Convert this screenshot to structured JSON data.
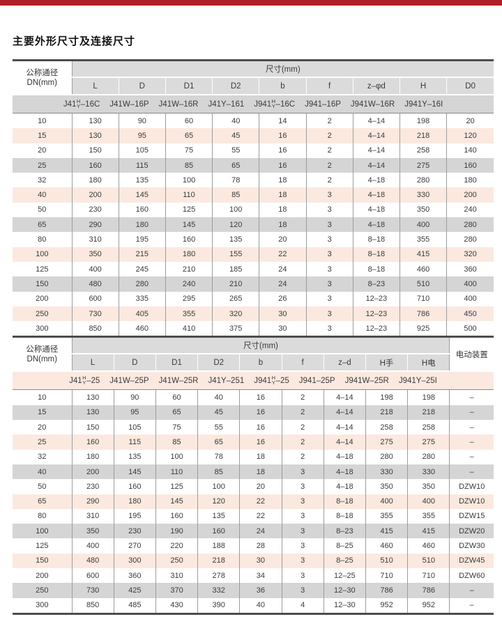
{
  "page": {
    "title": "主要外形尺寸及连接尺寸",
    "accent_color": "#b01e28"
  },
  "colors": {
    "row_pink": "#fbe9e0",
    "row_gray": "#d5d5d5",
    "header_gray": "#dbdbdb",
    "thick_border": "#4d4d4d",
    "column_divider": "#9c9c9c"
  },
  "table1": {
    "dn_header_line1": "公称通径",
    "dn_header_line2": "DN(mm)",
    "size_header": "尺寸(mm)",
    "columns": [
      "L",
      "D",
      "D1",
      "D2",
      "b",
      "f",
      "z–φd",
      "H",
      "D0"
    ],
    "model_band_shade": "gray",
    "models": [
      {
        "pre": "J41",
        "stack_top": "H",
        "stack_bottom": "Y",
        "post": "–16C"
      },
      {
        "text": "J41W–16P"
      },
      {
        "text": "J41W–16R"
      },
      {
        "text": "J41Y–161"
      },
      {
        "pre": "J941",
        "stack_top": "H",
        "stack_bottom": "Y",
        "post": "–16C"
      },
      {
        "text": "J941–16P"
      },
      {
        "text": "J941W–16R"
      },
      {
        "text": "J941Y–16I"
      }
    ],
    "rows": [
      {
        "dn": "10",
        "values": [
          "130",
          "90",
          "60",
          "40",
          "14",
          "2",
          "4–14",
          "198",
          "20"
        ],
        "shade": "w"
      },
      {
        "dn": "15",
        "values": [
          "130",
          "95",
          "65",
          "45",
          "16",
          "2",
          "4–14",
          "218",
          "120"
        ],
        "shade": "p"
      },
      {
        "dn": "20",
        "values": [
          "150",
          "105",
          "75",
          "55",
          "16",
          "2",
          "4–14",
          "258",
          "140"
        ],
        "shade": "w"
      },
      {
        "dn": "25",
        "values": [
          "160",
          "115",
          "85",
          "65",
          "16",
          "2",
          "4–14",
          "275",
          "160"
        ],
        "shade": "g"
      },
      {
        "dn": "32",
        "values": [
          "180",
          "135",
          "100",
          "78",
          "18",
          "2",
          "4–18",
          "280",
          "180"
        ],
        "shade": "w"
      },
      {
        "dn": "40",
        "values": [
          "200",
          "145",
          "110",
          "85",
          "18",
          "3",
          "4–18",
          "330",
          "200"
        ],
        "shade": "p"
      },
      {
        "dn": "50",
        "values": [
          "230",
          "160",
          "125",
          "100",
          "18",
          "3",
          "4–18",
          "350",
          "240"
        ],
        "shade": "w"
      },
      {
        "dn": "65",
        "values": [
          "290",
          "180",
          "145",
          "120",
          "18",
          "3",
          "4–18",
          "400",
          "280"
        ],
        "shade": "g"
      },
      {
        "dn": "80",
        "values": [
          "310",
          "195",
          "160",
          "135",
          "20",
          "3",
          "8–18",
          "355",
          "280"
        ],
        "shade": "w"
      },
      {
        "dn": "100",
        "values": [
          "350",
          "215",
          "180",
          "155",
          "22",
          "3",
          "8–18",
          "415",
          "320"
        ],
        "shade": "p"
      },
      {
        "dn": "125",
        "values": [
          "400",
          "245",
          "210",
          "185",
          "24",
          "3",
          "8–18",
          "460",
          "360"
        ],
        "shade": "w"
      },
      {
        "dn": "150",
        "values": [
          "480",
          "280",
          "240",
          "210",
          "24",
          "3",
          "8–23",
          "510",
          "400"
        ],
        "shade": "g"
      },
      {
        "dn": "200",
        "values": [
          "600",
          "335",
          "295",
          "265",
          "26",
          "3",
          "12–23",
          "710",
          "400"
        ],
        "shade": "w"
      },
      {
        "dn": "250",
        "values": [
          "730",
          "405",
          "355",
          "320",
          "30",
          "3",
          "12–23",
          "786",
          "450"
        ],
        "shade": "p"
      },
      {
        "dn": "300",
        "values": [
          "850",
          "460",
          "410",
          "375",
          "30",
          "3",
          "12–23",
          "925",
          "500"
        ],
        "shade": "w"
      }
    ]
  },
  "table2": {
    "dn_header_line1": "公称通径",
    "dn_header_line2": "DN(mm)",
    "size_header": "尺寸(mm)",
    "actuator_header": "电动装置",
    "columns": [
      "L",
      "D",
      "D1",
      "D2",
      "b",
      "f",
      "z–d",
      "H手",
      "H电"
    ],
    "model_band_shade": "pink",
    "models": [
      {
        "pre": "J41",
        "stack_top": "H",
        "stack_bottom": "Y",
        "post": "–25"
      },
      {
        "text": "J41W–25P"
      },
      {
        "text": "J41W–25R"
      },
      {
        "text": "J41Y–251"
      },
      {
        "pre": "J941",
        "stack_top": "H",
        "stack_bottom": "Y",
        "post": "–25"
      },
      {
        "text": "J941–25P"
      },
      {
        "text": "J941W–25R"
      },
      {
        "text": "J941Y–25I"
      }
    ],
    "rows": [
      {
        "dn": "10",
        "values": [
          "130",
          "90",
          "60",
          "40",
          "16",
          "2",
          "4–14",
          "198",
          "198"
        ],
        "actuator": "–",
        "shade": "w"
      },
      {
        "dn": "15",
        "values": [
          "130",
          "95",
          "65",
          "45",
          "16",
          "2",
          "4–14",
          "218",
          "218"
        ],
        "actuator": "–",
        "shade": "g"
      },
      {
        "dn": "20",
        "values": [
          "150",
          "105",
          "75",
          "55",
          "16",
          "2",
          "4–14",
          "258",
          "258"
        ],
        "actuator": "–",
        "shade": "w"
      },
      {
        "dn": "25",
        "values": [
          "160",
          "115",
          "85",
          "65",
          "16",
          "2",
          "4–14",
          "275",
          "275"
        ],
        "actuator": "–",
        "shade": "p"
      },
      {
        "dn": "32",
        "values": [
          "180",
          "135",
          "100",
          "78",
          "18",
          "2",
          "4–18",
          "280",
          "280"
        ],
        "actuator": "–",
        "shade": "w"
      },
      {
        "dn": "40",
        "values": [
          "200",
          "145",
          "110",
          "85",
          "18",
          "3",
          "4–18",
          "330",
          "330"
        ],
        "actuator": "–",
        "shade": "g"
      },
      {
        "dn": "50",
        "values": [
          "230",
          "160",
          "125",
          "100",
          "20",
          "3",
          "4–18",
          "350",
          "350"
        ],
        "actuator": "DZW10",
        "shade": "w"
      },
      {
        "dn": "65",
        "values": [
          "290",
          "180",
          "145",
          "120",
          "22",
          "3",
          "8–18",
          "400",
          "400"
        ],
        "actuator": "DZW10",
        "shade": "p"
      },
      {
        "dn": "80",
        "values": [
          "310",
          "195",
          "160",
          "135",
          "22",
          "3",
          "8–18",
          "355",
          "355"
        ],
        "actuator": "DZW15",
        "shade": "w"
      },
      {
        "dn": "100",
        "values": [
          "350",
          "230",
          "190",
          "160",
          "24",
          "3",
          "8–23",
          "415",
          "415"
        ],
        "actuator": "DZW20",
        "shade": "g"
      },
      {
        "dn": "125",
        "values": [
          "400",
          "270",
          "220",
          "188",
          "28",
          "3",
          "8–25",
          "460",
          "460"
        ],
        "actuator": "DZW30",
        "shade": "w"
      },
      {
        "dn": "150",
        "values": [
          "480",
          "300",
          "250",
          "218",
          "30",
          "3",
          "8–25",
          "510",
          "510"
        ],
        "actuator": "DZW45",
        "shade": "p"
      },
      {
        "dn": "200",
        "values": [
          "600",
          "360",
          "310",
          "278",
          "34",
          "3",
          "12–25",
          "710",
          "710"
        ],
        "actuator": "DZW60",
        "shade": "w"
      },
      {
        "dn": "250",
        "values": [
          "730",
          "425",
          "370",
          "332",
          "36",
          "3",
          "12–30",
          "786",
          "786"
        ],
        "actuator": "–",
        "shade": "g"
      },
      {
        "dn": "300",
        "values": [
          "850",
          "485",
          "430",
          "390",
          "40",
          "4",
          "12–30",
          "952",
          "952"
        ],
        "actuator": "–",
        "shade": "w"
      }
    ]
  }
}
